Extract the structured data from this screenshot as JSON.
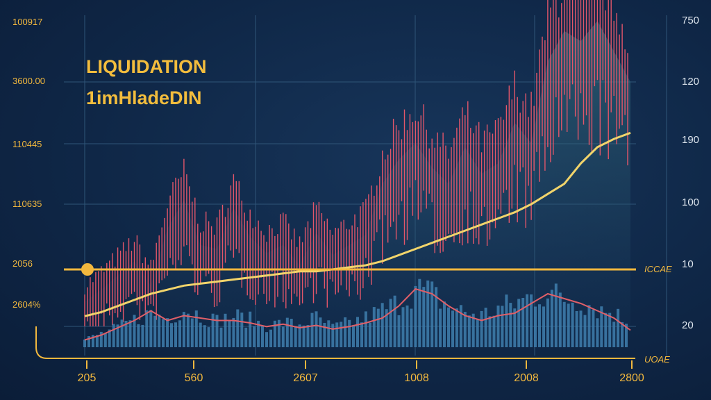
{
  "chart_data": {
    "type": "line",
    "title": "LIQUIDATION",
    "subtitle": "1imHladeDIN",
    "left_axis_labels": [
      "100917",
      "3600.00",
      "110445",
      "110635",
      "2056",
      "2604%"
    ],
    "right_axis_labels": [
      "750",
      "120",
      "190",
      "100",
      "10",
      "20"
    ],
    "x_tick_labels": [
      "205",
      "560",
      "2607",
      "1008",
      "2008",
      "2800"
    ],
    "reference_line": {
      "label": "ICCAE",
      "value": 10
    },
    "volume_axis_label": "UOAE",
    "series": [
      {
        "values": [
          5,
          7,
          10,
          13,
          16,
          18,
          20,
          21,
          22,
          23,
          24,
          25,
          26,
          27,
          27,
          28,
          29,
          30,
          32,
          35,
          38,
          41,
          44,
          47,
          50,
          53,
          56,
          60,
          65,
          70,
          80,
          88,
          92,
          95
        ]
      },
      {
        "values": [
          12,
          18,
          25,
          32,
          20,
          48,
          62,
          40,
          38,
          58,
          44,
          36,
          40,
          30,
          46,
          35,
          40,
          45,
          70,
          82,
          90,
          78,
          70,
          88,
          75,
          80,
          100,
          90,
          130,
          145,
          140,
          150,
          135,
          120
        ]
      }
    ],
    "volume": {
      "values": [
        8,
        14,
        20,
        28,
        35,
        30,
        40,
        33,
        27,
        32,
        28,
        22,
        25,
        24,
        30,
        20,
        25,
        30,
        38,
        46,
        60,
        55,
        42,
        36,
        33,
        40,
        45,
        52,
        56,
        50,
        48,
        40,
        35,
        25
      ],
      "moving_average": [
        6,
        10,
        16,
        22,
        30,
        22,
        26,
        24,
        22,
        22,
        20,
        17,
        19,
        16,
        18,
        15,
        17,
        20,
        24,
        34,
        48,
        44,
        34,
        26,
        22,
        26,
        28,
        36,
        44,
        40,
        36,
        30,
        24,
        14
      ]
    }
  }
}
